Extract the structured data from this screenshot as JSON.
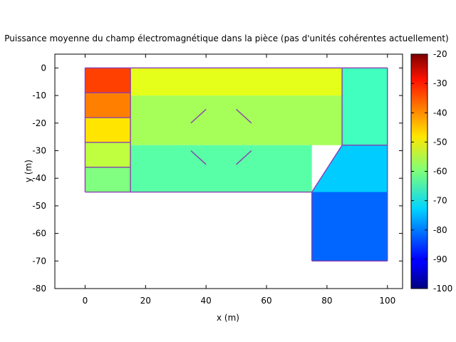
{
  "chart_data": {
    "type": "heatmap",
    "title": "Puissance moyenne du champ électromagnétique dans la pièce (pas d'unités cohérentes actuellement)",
    "xlabel": "x (m)",
    "ylabel": "y (m)",
    "xlim": [
      -10,
      105
    ],
    "ylim": [
      -80,
      5
    ],
    "xticks": [
      0,
      20,
      40,
      60,
      80,
      100
    ],
    "yticks": [
      0,
      -10,
      -20,
      -30,
      -40,
      -50,
      -60,
      -70,
      -80
    ],
    "grid": false,
    "colorbar": {
      "range": [
        -100,
        -20
      ],
      "ticks": [
        -20,
        -30,
        -40,
        -50,
        -60,
        -70,
        -80,
        -90,
        -100
      ],
      "colormap": "jet"
    },
    "regions": [
      {
        "name": "room-corner-top",
        "polygon": [
          [
            0,
            0
          ],
          [
            15,
            0
          ],
          [
            15,
            -9
          ],
          [
            0,
            -9
          ]
        ],
        "value": -35
      },
      {
        "name": "room-corner-mid",
        "polygon": [
          [
            0,
            -9
          ],
          [
            15,
            -9
          ],
          [
            15,
            -18
          ],
          [
            0,
            -18
          ]
        ],
        "value": -40
      },
      {
        "name": "room-left-a",
        "polygon": [
          [
            0,
            -18
          ],
          [
            15,
            -18
          ],
          [
            15,
            -27
          ],
          [
            0,
            -27
          ]
        ],
        "value": -48
      },
      {
        "name": "room-left-b",
        "polygon": [
          [
            0,
            -27
          ],
          [
            15,
            -27
          ],
          [
            15,
            -36
          ],
          [
            0,
            -36
          ]
        ],
        "value": -55
      },
      {
        "name": "room-left-c",
        "polygon": [
          [
            0,
            -36
          ],
          [
            15,
            -36
          ],
          [
            15,
            -45
          ],
          [
            0,
            -45
          ]
        ],
        "value": -60
      },
      {
        "name": "main-hall-top",
        "polygon": [
          [
            15,
            0
          ],
          [
            85,
            0
          ],
          [
            85,
            -10
          ],
          [
            15,
            -10
          ]
        ],
        "value": -52
      },
      {
        "name": "main-hall-mid",
        "polygon": [
          [
            15,
            -10
          ],
          [
            85,
            -10
          ],
          [
            85,
            -28
          ],
          [
            15,
            -28
          ]
        ],
        "value": -57
      },
      {
        "name": "main-hall-low",
        "polygon": [
          [
            15,
            -28
          ],
          [
            75,
            -28
          ],
          [
            75,
            -45
          ],
          [
            15,
            -45
          ]
        ],
        "value": -63
      },
      {
        "name": "right-room",
        "polygon": [
          [
            85,
            0
          ],
          [
            100,
            0
          ],
          [
            100,
            -28
          ],
          [
            85,
            -28
          ]
        ],
        "value": -65
      },
      {
        "name": "corridor",
        "polygon": [
          [
            85,
            -28
          ],
          [
            100,
            -28
          ],
          [
            100,
            -45
          ],
          [
            75,
            -45
          ]
        ],
        "value": -74
      },
      {
        "name": "lower-room",
        "polygon": [
          [
            75,
            -45
          ],
          [
            100,
            -45
          ],
          [
            100,
            -70
          ],
          [
            75,
            -70
          ]
        ],
        "value": -82
      }
    ],
    "walls": [
      [
        [
          0,
          0
        ],
        [
          100,
          0
        ]
      ],
      [
        [
          0,
          0
        ],
        [
          0,
          -45
        ]
      ],
      [
        [
          0,
          -45
        ],
        [
          75,
          -45
        ]
      ],
      [
        [
          75,
          -45
        ],
        [
          75,
          -70
        ]
      ],
      [
        [
          75,
          -70
        ],
        [
          100,
          -70
        ]
      ],
      [
        [
          100,
          -70
        ],
        [
          100,
          0
        ]
      ],
      [
        [
          15,
          0
        ],
        [
          15,
          -45
        ]
      ],
      [
        [
          0,
          -9
        ],
        [
          15,
          -9
        ]
      ],
      [
        [
          0,
          -18
        ],
        [
          15,
          -18
        ]
      ],
      [
        [
          0,
          -27
        ],
        [
          15,
          -27
        ]
      ],
      [
        [
          0,
          -36
        ],
        [
          15,
          -36
        ]
      ],
      [
        [
          85,
          0
        ],
        [
          85,
          -28
        ]
      ],
      [
        [
          85,
          -28
        ],
        [
          75,
          -45
        ]
      ],
      [
        [
          85,
          -28
        ],
        [
          100,
          -28
        ]
      ],
      [
        [
          35,
          -20
        ],
        [
          40,
          -15
        ]
      ],
      [
        [
          50,
          -15
        ],
        [
          55,
          -20
        ]
      ],
      [
        [
          35,
          -30
        ],
        [
          40,
          -35
        ]
      ],
      [
        [
          50,
          -35
        ],
        [
          55,
          -30
        ]
      ]
    ]
  }
}
